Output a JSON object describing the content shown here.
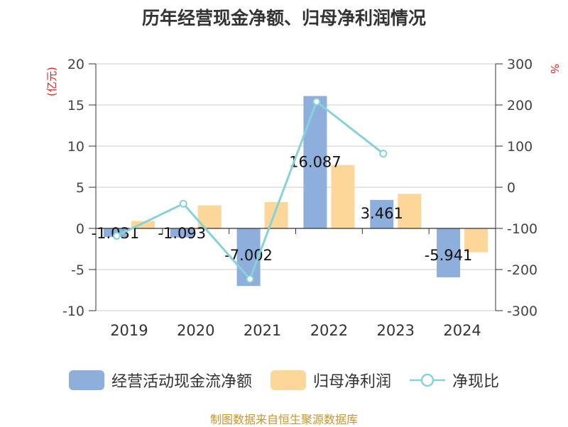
{
  "chart_data": {
    "type": "bar",
    "title": "历年经营现金净额、归母净利润情况",
    "categories": [
      "2019",
      "2020",
      "2021",
      "2022",
      "2023",
      "2024"
    ],
    "series": [
      {
        "name": "经营活动现金流净额",
        "axis": "left",
        "kind": "bar",
        "color": "#8eaedb",
        "values": [
          -1.031,
          -1.093,
          -7.002,
          16.087,
          3.461,
          -5.941
        ]
      },
      {
        "name": "归母净利润",
        "axis": "left",
        "kind": "bar",
        "color": "#fdd699",
        "values": [
          0.9,
          2.8,
          3.2,
          7.7,
          4.2,
          -2.9
        ]
      },
      {
        "name": "净现比",
        "axis": "right",
        "kind": "line",
        "color": "#87d2d9",
        "values": [
          -118,
          -40,
          -223,
          208,
          82,
          null
        ]
      }
    ],
    "data_labels": [
      "-1.031",
      "-1.093",
      "-7.002",
      "16.087",
      "3.461",
      "-5.941"
    ],
    "y_left": {
      "label": "(亿元)",
      "ylim": [
        -10,
        20
      ],
      "ticks": [
        "20",
        "15",
        "10",
        "5",
        "0",
        "-5",
        "-10"
      ]
    },
    "y_right": {
      "label": "%",
      "ylim": [
        -300,
        300
      ],
      "ticks": [
        "300",
        "200",
        "100",
        "0",
        "-100",
        "-200",
        "-300"
      ]
    },
    "grid": true,
    "legend_position": "bottom"
  },
  "source": "制图数据来自恒生聚源数据库"
}
